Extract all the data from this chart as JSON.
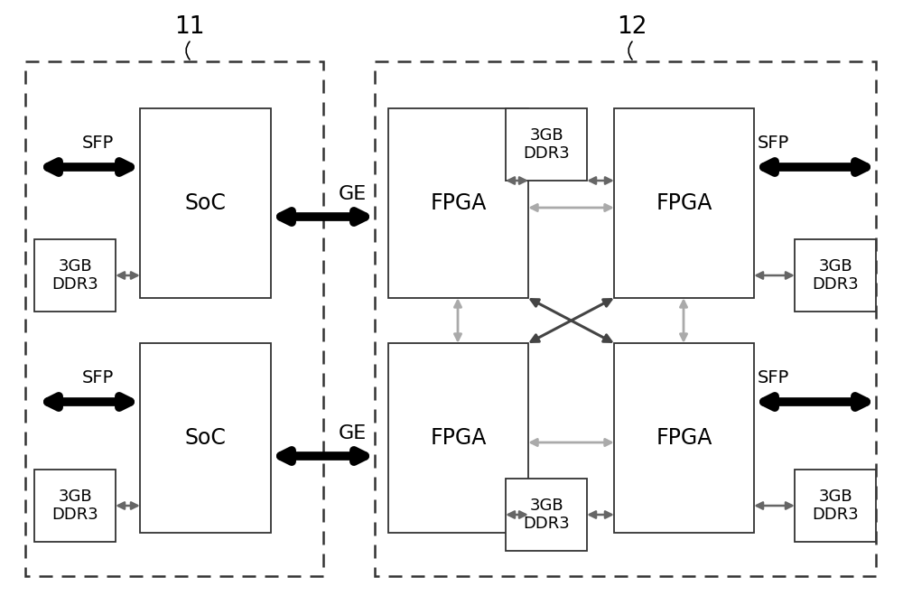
{
  "bg_color": "#ffffff",
  "label11": "11",
  "label12": "12",
  "soc_label": "SoC",
  "fpga_label": "FPGA",
  "ddr_label": "3GB\nDDR3",
  "sfp_label": "SFP",
  "ge_label": "GE",
  "font_size_label": 19,
  "font_size_box": 17,
  "font_size_ddr": 13,
  "font_size_sfp": 14,
  "font_size_ge": 16
}
